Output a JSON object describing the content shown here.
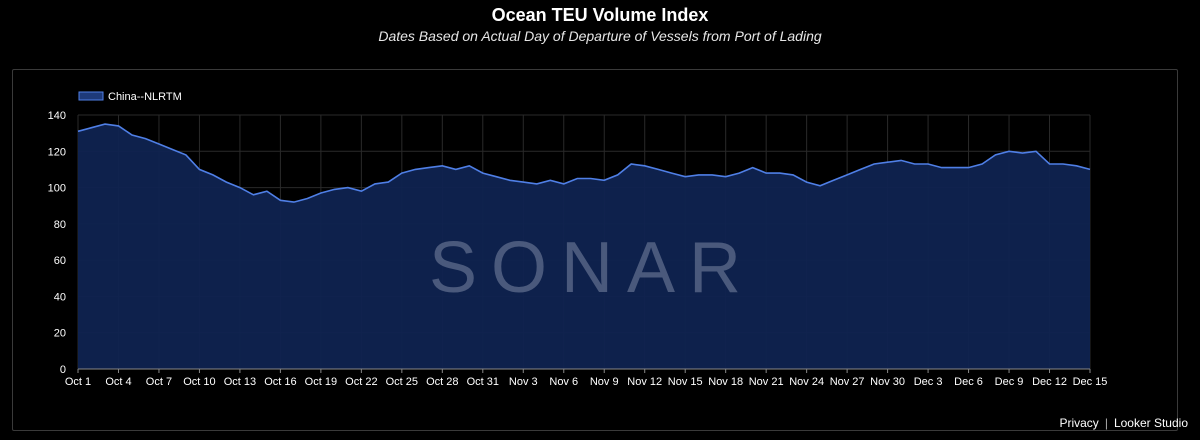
{
  "header": {
    "title": "Ocean TEU Volume Index",
    "subtitle": "Dates Based on Actual Day of Departure of Vessels from Port of Lading"
  },
  "watermark": "SONAR",
  "footer": {
    "privacy": "Privacy",
    "separator": "|",
    "brand": "Looker Studio"
  },
  "colors": {
    "background": "#000000",
    "area_fill": "#0f2350",
    "line": "#4f7fe6",
    "grid": "#2a2a2a",
    "axis_text": "#ffffff"
  },
  "chart_data": {
    "type": "area",
    "title": "Ocean TEU Volume Index",
    "subtitle": "Dates Based on Actual Day of Departure of Vessels from Port of Lading",
    "legend_position": "top-left",
    "grid": true,
    "ylim": [
      0,
      140
    ],
    "yticks": [
      0,
      20,
      40,
      60,
      80,
      100,
      120,
      140
    ],
    "xlim": [
      "Oct 1",
      "Dec 15"
    ],
    "xticks": [
      "Oct 1",
      "Oct 4",
      "Oct 7",
      "Oct 10",
      "Oct 13",
      "Oct 16",
      "Oct 19",
      "Oct 22",
      "Oct 25",
      "Oct 28",
      "Oct 31",
      "Nov 3",
      "Nov 6",
      "Nov 9",
      "Nov 12",
      "Nov 15",
      "Nov 18",
      "Nov 21",
      "Nov 24",
      "Nov 27",
      "Nov 30",
      "Dec 3",
      "Dec 6",
      "Dec 9",
      "Dec 12",
      "Dec 15"
    ],
    "series": [
      {
        "name": "China--NLRTM",
        "x": [
          "Oct 1",
          "Oct 2",
          "Oct 3",
          "Oct 4",
          "Oct 5",
          "Oct 6",
          "Oct 7",
          "Oct 8",
          "Oct 9",
          "Oct 10",
          "Oct 11",
          "Oct 12",
          "Oct 13",
          "Oct 14",
          "Oct 15",
          "Oct 16",
          "Oct 17",
          "Oct 18",
          "Oct 19",
          "Oct 20",
          "Oct 21",
          "Oct 22",
          "Oct 23",
          "Oct 24",
          "Oct 25",
          "Oct 26",
          "Oct 27",
          "Oct 28",
          "Oct 29",
          "Oct 30",
          "Oct 31",
          "Nov 1",
          "Nov 2",
          "Nov 3",
          "Nov 4",
          "Nov 5",
          "Nov 6",
          "Nov 7",
          "Nov 8",
          "Nov 9",
          "Nov 10",
          "Nov 11",
          "Nov 12",
          "Nov 13",
          "Nov 14",
          "Nov 15",
          "Nov 16",
          "Nov 17",
          "Nov 18",
          "Nov 19",
          "Nov 20",
          "Nov 21",
          "Nov 22",
          "Nov 23",
          "Nov 24",
          "Nov 25",
          "Nov 26",
          "Nov 27",
          "Nov 28",
          "Nov 29",
          "Nov 30",
          "Dec 1",
          "Dec 2",
          "Dec 3",
          "Dec 4",
          "Dec 5",
          "Dec 6",
          "Dec 7",
          "Dec 8",
          "Dec 9",
          "Dec 10",
          "Dec 11",
          "Dec 12",
          "Dec 13",
          "Dec 14",
          "Dec 15"
        ],
        "values": [
          131,
          133,
          135,
          134,
          129,
          127,
          124,
          121,
          118,
          110,
          107,
          103,
          100,
          96,
          98,
          93,
          92,
          94,
          97,
          99,
          100,
          98,
          102,
          103,
          108,
          110,
          111,
          112,
          110,
          112,
          108,
          106,
          104,
          103,
          102,
          104,
          102,
          105,
          105,
          104,
          107,
          113,
          112,
          110,
          108,
          106,
          107,
          107,
          106,
          108,
          111,
          108,
          108,
          107,
          103,
          101,
          104,
          107,
          110,
          113,
          114,
          115,
          113,
          113,
          111,
          111,
          111,
          113,
          118,
          120,
          119,
          120,
          113,
          113,
          112,
          110
        ]
      }
    ]
  }
}
